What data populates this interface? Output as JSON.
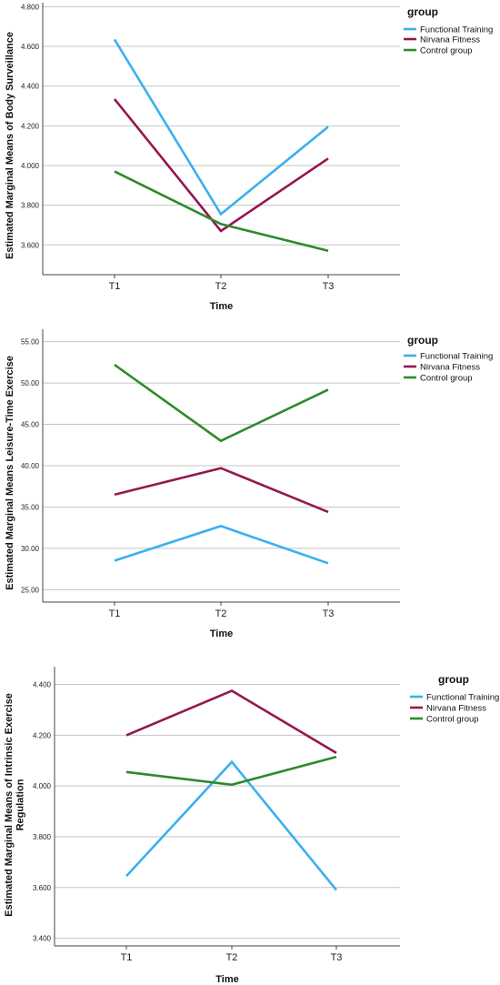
{
  "chart_data": [
    {
      "type": "line",
      "xlabel": "Time",
      "ylabel": "Estimated Marginal Means of Body Surveillance",
      "categories": [
        "T1",
        "T2",
        "T3"
      ],
      "ylim": [
        3.45,
        4.82
      ],
      "yticks": [
        3.6,
        3.8,
        4.0,
        4.2,
        4.4,
        4.6,
        4.8
      ],
      "ytick_labels": [
        "3.600",
        "3.800",
        "4.000",
        "4.200",
        "4.400",
        "4.600",
        "4.800"
      ],
      "legend_title": "group",
      "series": [
        {
          "name": "Functional Training",
          "color": "#3aafef",
          "values": [
            4.635,
            3.755,
            4.195
          ]
        },
        {
          "name": "Nirvana Fitness",
          "color": "#94174f",
          "values": [
            4.335,
            3.67,
            4.035
          ]
        },
        {
          "name": "Control group",
          "color": "#2f8a2b",
          "values": [
            3.97,
            3.705,
            3.57
          ]
        }
      ]
    },
    {
      "type": "line",
      "xlabel": "Time",
      "ylabel": "Estimated Marginal Means Leisure-Time Exercise",
      "categories": [
        "T1",
        "T2",
        "T3"
      ],
      "ylim": [
        23.5,
        56.5
      ],
      "yticks": [
        25,
        30,
        35,
        40,
        45,
        50,
        55
      ],
      "ytick_labels": [
        "25.00",
        "30.00",
        "35.00",
        "40.00",
        "45.00",
        "50.00",
        "55.00"
      ],
      "legend_title": "group",
      "series": [
        {
          "name": "Functional Training",
          "color": "#3aafef",
          "values": [
            28.5,
            32.7,
            28.2
          ]
        },
        {
          "name": "Nirvana Fitness",
          "color": "#94174f",
          "values": [
            36.5,
            39.7,
            34.4
          ]
        },
        {
          "name": "Control group",
          "color": "#2f8a2b",
          "values": [
            52.2,
            43.0,
            49.2
          ]
        }
      ]
    },
    {
      "type": "line",
      "xlabel": "Time",
      "ylabel": "Estimated Marginal Means of Intrinsic Exercise Regulation",
      "categories": [
        "T1",
        "T2",
        "T3"
      ],
      "ylim": [
        3.37,
        4.47
      ],
      "yticks": [
        3.4,
        3.6,
        3.8,
        4.0,
        4.2,
        4.4
      ],
      "ytick_labels": [
        "3.400",
        "3.600",
        "3.800",
        "4.000",
        "4.200",
        "4.400"
      ],
      "legend_title": "group",
      "series": [
        {
          "name": "Functional Training",
          "color": "#3aafef",
          "values": [
            3.645,
            4.095,
            3.59
          ]
        },
        {
          "name": "Nirvana Fitness",
          "color": "#94174f",
          "values": [
            4.2,
            4.375,
            4.13
          ]
        },
        {
          "name": "Control group",
          "color": "#2f8a2b",
          "values": [
            4.055,
            4.005,
            4.115
          ]
        }
      ]
    }
  ]
}
